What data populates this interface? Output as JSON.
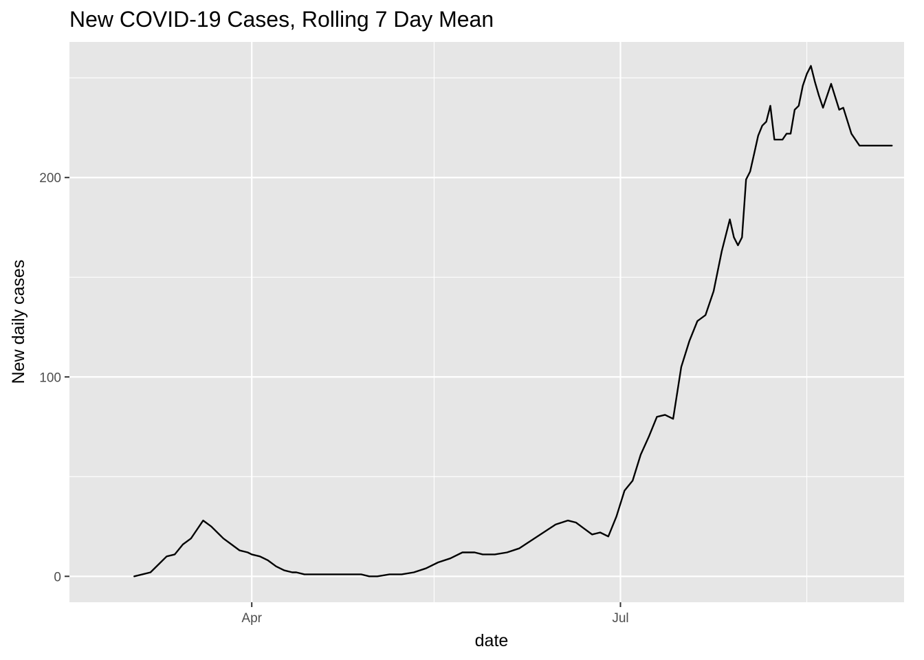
{
  "chart_data": {
    "type": "line",
    "title": "New COVID-19 Cases, Rolling 7 Day Mean",
    "xlabel": "date",
    "ylabel": "New daily cases",
    "xlim": [
      "2020-02-16",
      "2020-09-09"
    ],
    "ylim": [
      -13,
      268
    ],
    "x_ticks": [
      {
        "date": "2020-04-01",
        "label": "Apr"
      },
      {
        "date": "2020-07-01",
        "label": "Jul"
      }
    ],
    "x_minor_gridlines": [
      "2020-05-16",
      "2020-08-16"
    ],
    "y_ticks": [
      {
        "value": 0,
        "label": "0"
      },
      {
        "value": 100,
        "label": "100"
      },
      {
        "value": 200,
        "label": "200"
      }
    ],
    "y_minor_gridlines": [
      50,
      150,
      250
    ],
    "grid": true,
    "legend": "none",
    "colors": {
      "panel": "#e6e6e6",
      "grid": "#ffffff",
      "line": "#000000"
    },
    "series": [
      {
        "x": [
          "2020-03-03",
          "2020-03-05",
          "2020-03-07",
          "2020-03-09",
          "2020-03-11",
          "2020-03-13",
          "2020-03-15",
          "2020-03-17",
          "2020-03-18",
          "2020-03-20",
          "2020-03-22",
          "2020-03-24",
          "2020-03-25",
          "2020-03-27",
          "2020-03-29",
          "2020-03-31",
          "2020-04-01",
          "2020-04-03",
          "2020-04-05",
          "2020-04-07",
          "2020-04-09",
          "2020-04-11",
          "2020-04-12",
          "2020-04-14",
          "2020-04-15",
          "2020-04-17",
          "2020-04-19",
          "2020-04-21",
          "2020-04-23",
          "2020-04-25",
          "2020-04-26",
          "2020-04-28",
          "2020-04-30",
          "2020-05-02",
          "2020-05-05",
          "2020-05-08",
          "2020-05-11",
          "2020-05-14",
          "2020-05-17",
          "2020-05-20",
          "2020-05-23",
          "2020-05-26",
          "2020-05-28",
          "2020-05-31",
          "2020-06-03",
          "2020-06-06",
          "2020-06-09",
          "2020-06-12",
          "2020-06-15",
          "2020-06-18",
          "2020-06-20",
          "2020-06-22",
          "2020-06-24",
          "2020-06-26",
          "2020-06-28",
          "2020-06-30",
          "2020-07-02",
          "2020-07-04",
          "2020-07-06",
          "2020-07-08",
          "2020-07-10",
          "2020-07-12",
          "2020-07-14",
          "2020-07-16",
          "2020-07-18",
          "2020-07-20",
          "2020-07-22",
          "2020-07-24",
          "2020-07-26",
          "2020-07-28",
          "2020-07-29",
          "2020-07-30",
          "2020-07-31",
          "2020-08-01",
          "2020-08-02",
          "2020-08-03",
          "2020-08-04",
          "2020-08-05",
          "2020-08-06",
          "2020-08-07",
          "2020-08-08",
          "2020-08-09",
          "2020-08-10",
          "2020-08-11",
          "2020-08-12",
          "2020-08-13",
          "2020-08-14",
          "2020-08-15",
          "2020-08-16",
          "2020-08-17",
          "2020-08-18",
          "2020-08-19",
          "2020-08-20",
          "2020-08-22",
          "2020-08-24",
          "2020-08-25",
          "2020-08-27",
          "2020-08-29",
          "2020-08-31",
          "2020-09-02",
          "2020-09-03",
          "2020-09-04",
          "2020-09-05",
          "2020-09-06"
        ],
        "y": [
          0,
          1,
          2,
          6,
          10,
          11,
          16,
          19,
          22,
          28,
          25,
          21,
          19,
          16,
          13,
          12,
          11,
          10,
          8,
          5,
          3,
          2,
          2,
          1,
          1,
          1,
          1,
          1,
          1,
          1,
          1,
          1,
          0,
          0,
          1,
          1,
          2,
          4,
          7,
          9,
          12,
          12,
          11,
          11,
          12,
          14,
          18,
          22,
          26,
          28,
          27,
          24,
          21,
          22,
          20,
          30,
          43,
          48,
          61,
          70,
          80,
          81,
          79,
          105,
          118,
          128,
          131,
          143,
          163,
          179,
          170,
          166,
          170,
          199,
          203,
          212,
          221,
          226,
          228,
          236,
          219,
          219,
          219,
          222,
          222,
          234,
          236,
          246,
          252,
          256,
          248,
          241,
          235,
          247,
          234,
          235,
          222,
          216,
          216,
          216,
          216,
          216,
          216,
          216
        ]
      }
    ]
  }
}
